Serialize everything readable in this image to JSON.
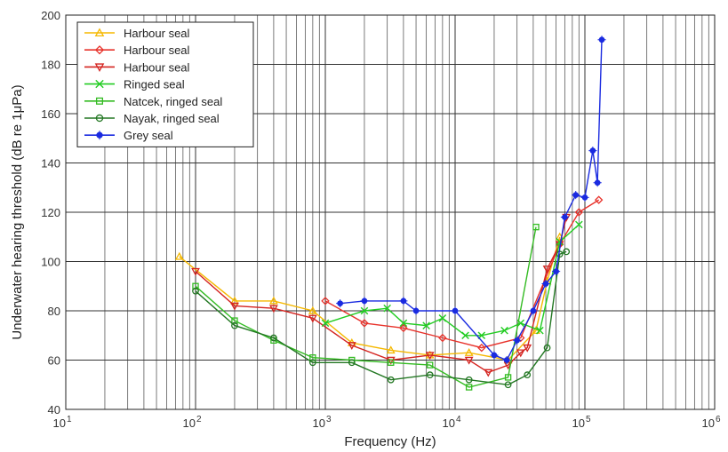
{
  "chart_data": {
    "type": "line",
    "xlabel": "Frequency (Hz)",
    "ylabel": "Underwater hearing threshold (dB re 1μPa)",
    "xscale": "log",
    "xlim": [
      10,
      1000000
    ],
    "ylim": [
      40,
      200
    ],
    "grid": true,
    "legend_position": "top-left",
    "x_ticks": [
      {
        "base": "10",
        "exp": "1"
      },
      {
        "base": "10",
        "exp": "2"
      },
      {
        "base": "10",
        "exp": "3"
      },
      {
        "base": "10",
        "exp": "4"
      },
      {
        "base": "10",
        "exp": "5"
      },
      {
        "base": "10",
        "exp": "6"
      }
    ],
    "y_ticks": [
      "40",
      "60",
      "80",
      "100",
      "120",
      "140",
      "160",
      "180",
      "200"
    ],
    "series": [
      {
        "name": "Harbour seal",
        "color": "#f5b800",
        "marker": "triangle-up",
        "x": [
          75,
          200,
          400,
          800,
          1600,
          3200,
          6400,
          12800,
          25600,
          42000,
          51200,
          64000
        ],
        "y": [
          102,
          84,
          84,
          80,
          67,
          64,
          62,
          63,
          60,
          72,
          92,
          110
        ]
      },
      {
        "name": "Harbour seal",
        "color": "#e8322b",
        "marker": "diamond",
        "x": [
          1000,
          2000,
          4000,
          8000,
          16000,
          32000,
          64000,
          90000,
          128000
        ],
        "y": [
          84,
          75,
          73,
          69,
          65,
          69,
          107,
          120,
          125
        ]
      },
      {
        "name": "Harbour seal",
        "color": "#d4231f",
        "marker": "triangle-down",
        "x": [
          100,
          200,
          400,
          800,
          1600,
          3200,
          6400,
          12800,
          18000,
          25600,
          32000,
          36000,
          51200,
          64000,
          72000
        ],
        "y": [
          96,
          82,
          81,
          77,
          66,
          60,
          62,
          60,
          55,
          58,
          63,
          65,
          97,
          107,
          118
        ]
      },
      {
        "name": "Ringed seal",
        "color": "#22cc22",
        "marker": "x",
        "x": [
          1000,
          2000,
          3000,
          4000,
          6000,
          8000,
          12000,
          16000,
          24000,
          32000,
          45000,
          64000,
          90000
        ],
        "y": [
          75,
          80,
          81,
          75,
          74,
          77,
          70,
          70,
          72,
          75,
          72,
          108,
          115
        ]
      },
      {
        "name": "Natcek, ringed seal",
        "color": "#33bb22",
        "marker": "square",
        "x": [
          100,
          200,
          400,
          800,
          1600,
          3200,
          6400,
          12800,
          25600,
          42000
        ],
        "y": [
          90,
          76,
          68,
          61,
          60,
          59,
          58,
          49,
          53,
          114
        ]
      },
      {
        "name": "Nayak, ringed seal",
        "color": "#227722",
        "marker": "circle",
        "x": [
          100,
          200,
          400,
          800,
          1600,
          3200,
          6400,
          12800,
          25600,
          36000,
          51200,
          64000,
          72000
        ],
        "y": [
          88,
          74,
          69,
          59,
          59,
          52,
          54,
          52,
          50,
          54,
          65,
          103,
          104
        ]
      },
      {
        "name": "Grey seal",
        "color": "#1a2be0",
        "marker": "star",
        "x": [
          1300,
          2000,
          4000,
          5000,
          10000,
          20000,
          25000,
          30000,
          40000,
          50000,
          60000,
          70000,
          85000,
          100000,
          115000,
          125000,
          135000
        ],
        "y": [
          83,
          84,
          84,
          80,
          80,
          62,
          60,
          68,
          80,
          91,
          96,
          118,
          127,
          126,
          145,
          132,
          190
        ]
      }
    ]
  }
}
